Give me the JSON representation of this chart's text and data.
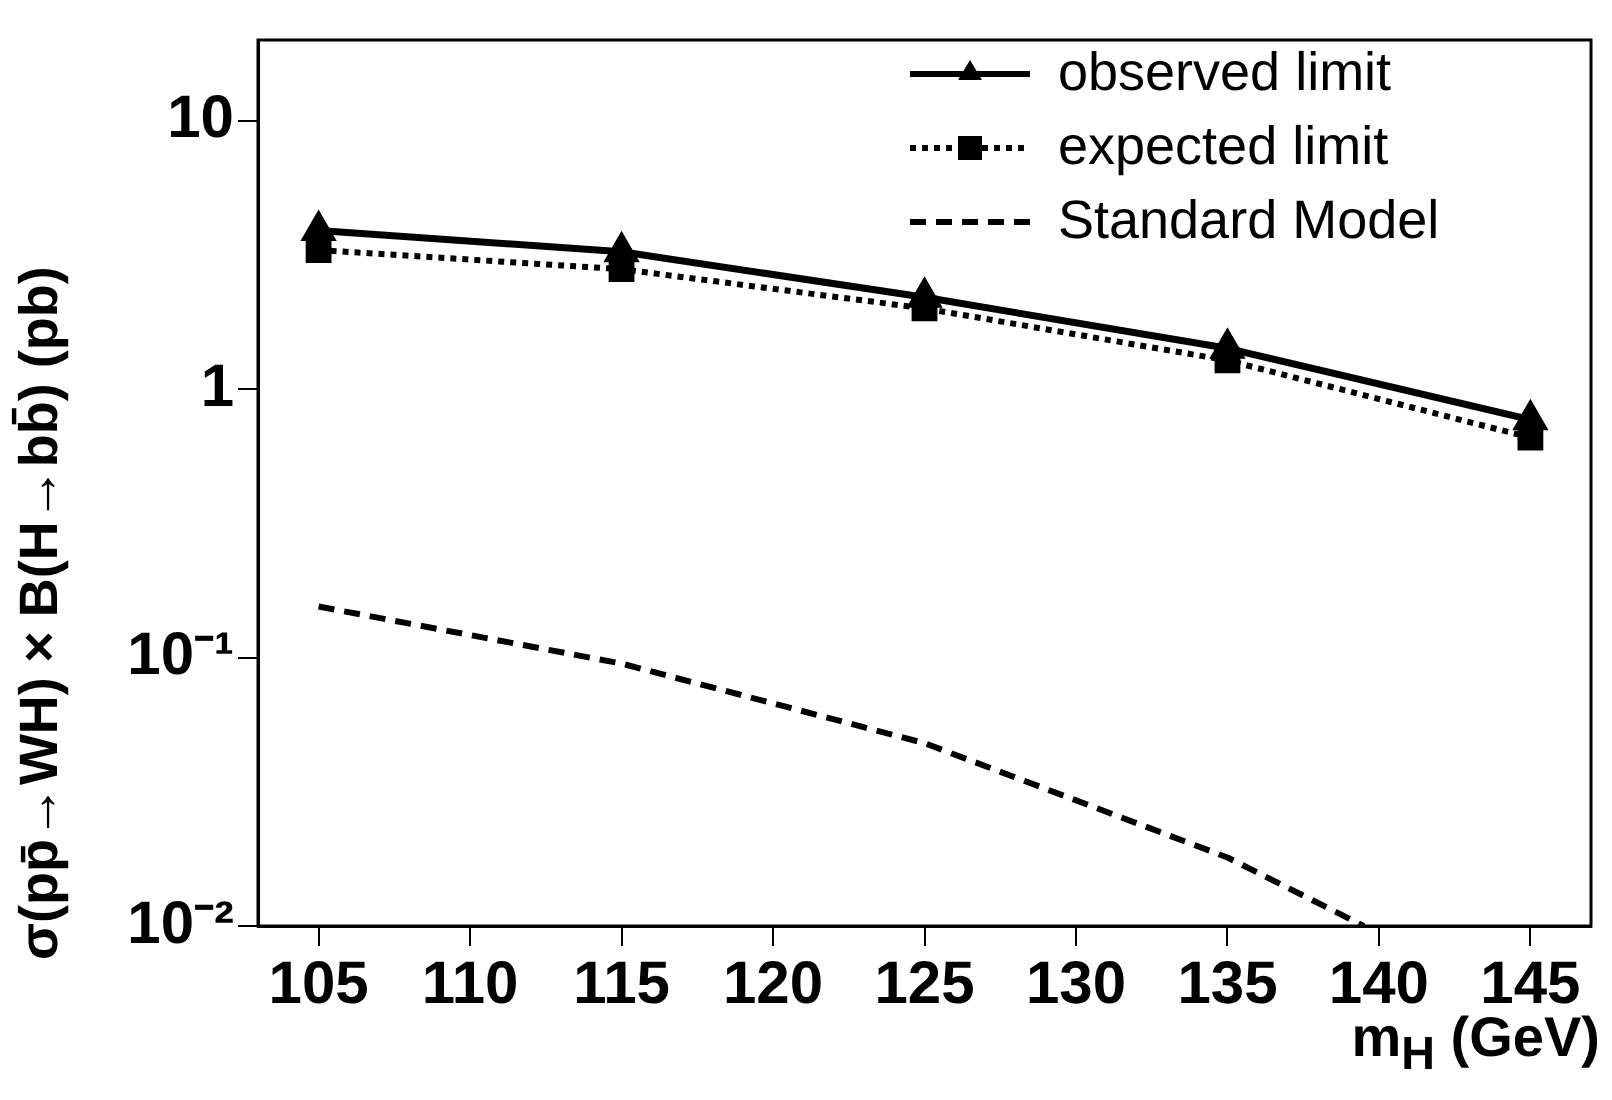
{
  "chart_data": {
    "type": "line",
    "xlabel": "m$_{H}$ (GeV)",
    "ylabel": "σ(pp̄→WH)×B(H→bb̄) (pb)",
    "log": "y",
    "xlim": [
      103,
      147
    ],
    "xticks": [
      105,
      110,
      115,
      120,
      125,
      130,
      135,
      140,
      145
    ],
    "ylim": [
      0.01,
      20
    ],
    "yticks": [
      {
        "value": 0.01,
        "label": "10⁻²"
      },
      {
        "value": 0.1,
        "label": "10⁻¹"
      },
      1,
      10
    ],
    "grid": false,
    "legend": "top right",
    "series": [
      {
        "name": "observed limit",
        "color": "#000000",
        "marker": "triangle",
        "line_style": "solid",
        "x": [
          105,
          115,
          125,
          135,
          145
        ],
        "values": [
          3.9,
          3.25,
          2.2,
          1.42,
          0.77
        ]
      },
      {
        "name": "expected limit",
        "color": "#000000",
        "marker": "square",
        "line_style": "dotted",
        "x": [
          105,
          115,
          125,
          135,
          145
        ],
        "values": [
          3.3,
          2.8,
          2.0,
          1.28,
          0.66
        ]
      },
      {
        "name": "Standard Model",
        "color": "#000000",
        "marker": "none",
        "line_style": "dashed",
        "x": [
          105,
          115,
          125,
          135,
          139.5
        ],
        "values": [
          0.155,
          0.095,
          0.048,
          0.018,
          0.01
        ]
      }
    ]
  }
}
